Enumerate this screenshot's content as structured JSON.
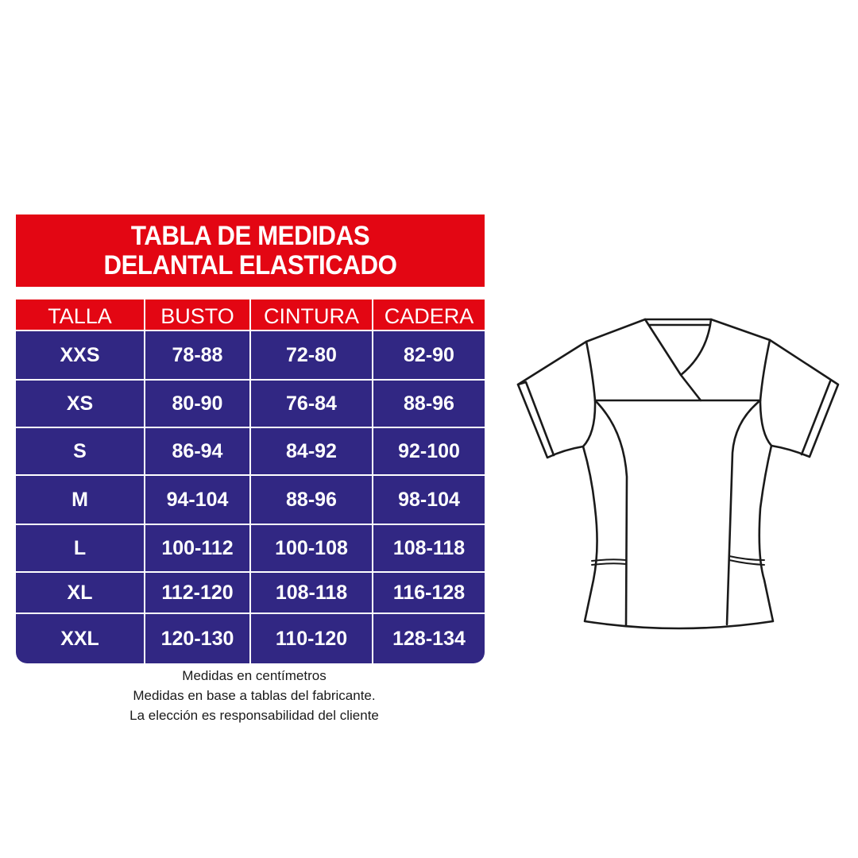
{
  "title": {
    "line1": "TABLA DE MEDIDAS",
    "line2": "DELANTAL ELASTICADO"
  },
  "colors": {
    "header_red": "#e30613",
    "body_blue": "#312783"
  },
  "table": {
    "headers": [
      "TALLA",
      "BUSTO",
      "CINTURA",
      "CADERA"
    ],
    "rows": [
      [
        "XXS",
        "78-88",
        "72-80",
        "82-90"
      ],
      [
        "XS",
        "80-90",
        "76-84",
        "88-96"
      ],
      [
        "S",
        "86-94",
        "84-92",
        "92-100"
      ],
      [
        "M",
        "94-104",
        "88-96",
        "98-104"
      ],
      [
        "L",
        "100-112",
        "100-108",
        "108-118"
      ],
      [
        "XL",
        "112-120",
        "108-118",
        "116-128"
      ],
      [
        "XXL",
        "120-130",
        "110-120",
        "128-134"
      ]
    ]
  },
  "notes": [
    "Medidas en centímetros",
    "Medidas en base a tablas del fabricante.",
    "La elección es responsabilidad del cliente"
  ],
  "illustration": {
    "icon": "scrub-top-line-drawing-icon"
  }
}
